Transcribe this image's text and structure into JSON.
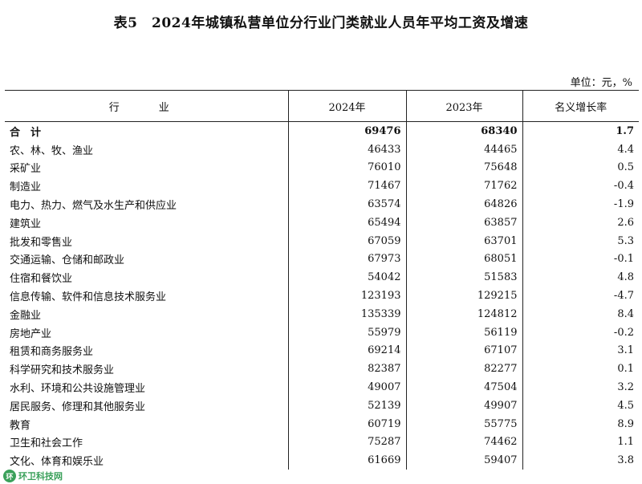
{
  "title": "表5　2024年城镇私营单位分行业门类就业人员年平均工资及增速",
  "unit": "单位：元，%",
  "headers": [
    "行　业",
    "2024年",
    "2023年",
    "名义增长率"
  ],
  "rows": [
    [
      "合　计",
      "69476",
      "68340",
      "1.7"
    ],
    [
      "农、林、牧、渔业",
      "46433",
      "44465",
      "4.4"
    ],
    [
      "采矿业",
      "76010",
      "75648",
      "0.5"
    ],
    [
      "制造业",
      "71467",
      "71762",
      "-0.4"
    ],
    [
      "电力、热力、燃气及水生产和供应业",
      "63574",
      "64826",
      "-1.9"
    ],
    [
      "建筑业",
      "65494",
      "63857",
      "2.6"
    ],
    [
      "批发和零售业",
      "67059",
      "63701",
      "5.3"
    ],
    [
      "交通运输、仓储和邮政业",
      "67973",
      "68051",
      "-0.1"
    ],
    [
      "住宿和餐饮业",
      "54042",
      "51583",
      "4.8"
    ],
    [
      "信息传输、软件和信息技术服务业",
      "123193",
      "129215",
      "-4.7"
    ],
    [
      "金融业",
      "135339",
      "124812",
      "8.4"
    ],
    [
      "房地产业",
      "55979",
      "56119",
      "-0.2"
    ],
    [
      "租赁和商务服务业",
      "69214",
      "67107",
      "3.1"
    ],
    [
      "科学研究和技术服务业",
      "82387",
      "82277",
      "0.1"
    ],
    [
      "水利、环境和公共设施管理业",
      "49007",
      "47504",
      "3.2"
    ],
    [
      "居民服务、修理和其他服务业",
      "52139",
      "49907",
      "4.5"
    ],
    [
      "教育",
      "60719",
      "55775",
      "8.9"
    ],
    [
      "卫生和社会工作",
      "75287",
      "74462",
      "1.1"
    ],
    [
      "文化、体育和娱乐业",
      "61669",
      "59407",
      "3.8"
    ]
  ],
  "watermark": {
    "text": "环卫科技网",
    "logo": "环"
  }
}
